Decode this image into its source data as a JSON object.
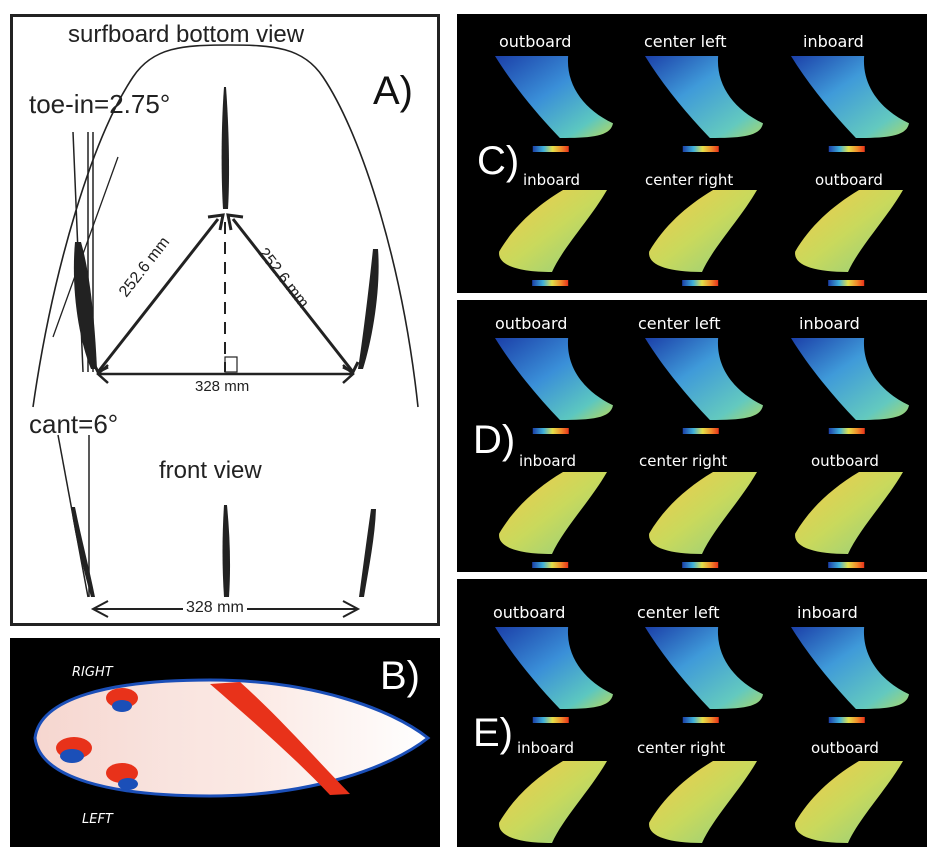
{
  "panel_a": {
    "letter": "A)",
    "title": "surfboard bottom view",
    "toe_in": "toe-in=2.75°",
    "cant": "cant=6°",
    "dist_left": "252.6 mm",
    "dist_right": "252.6 mm",
    "dist_bottom": "328 mm",
    "front_view": "front view",
    "front_dist": "328 mm"
  },
  "panel_b": {
    "letter": "B)",
    "right_label": "RIGHT",
    "left_label": "LEFT"
  },
  "panel_c": {
    "letter": "C)",
    "labels": [
      "outboard",
      "center left",
      "inboard",
      "inboard",
      "center right",
      "outboard"
    ]
  },
  "panel_d": {
    "letter": "D)",
    "labels": [
      "outboard",
      "center left",
      "inboard",
      "inboard",
      "center right",
      "outboard"
    ]
  },
  "panel_e": {
    "letter": "E)",
    "labels": [
      "outboard",
      "center left",
      "inboard",
      "inboard",
      "center right",
      "outboard"
    ]
  },
  "colors": {
    "line": "#222222",
    "panel_bg": "#000000",
    "pressure_high": "#e8321a",
    "pressure_low": "#1b4fb8"
  }
}
